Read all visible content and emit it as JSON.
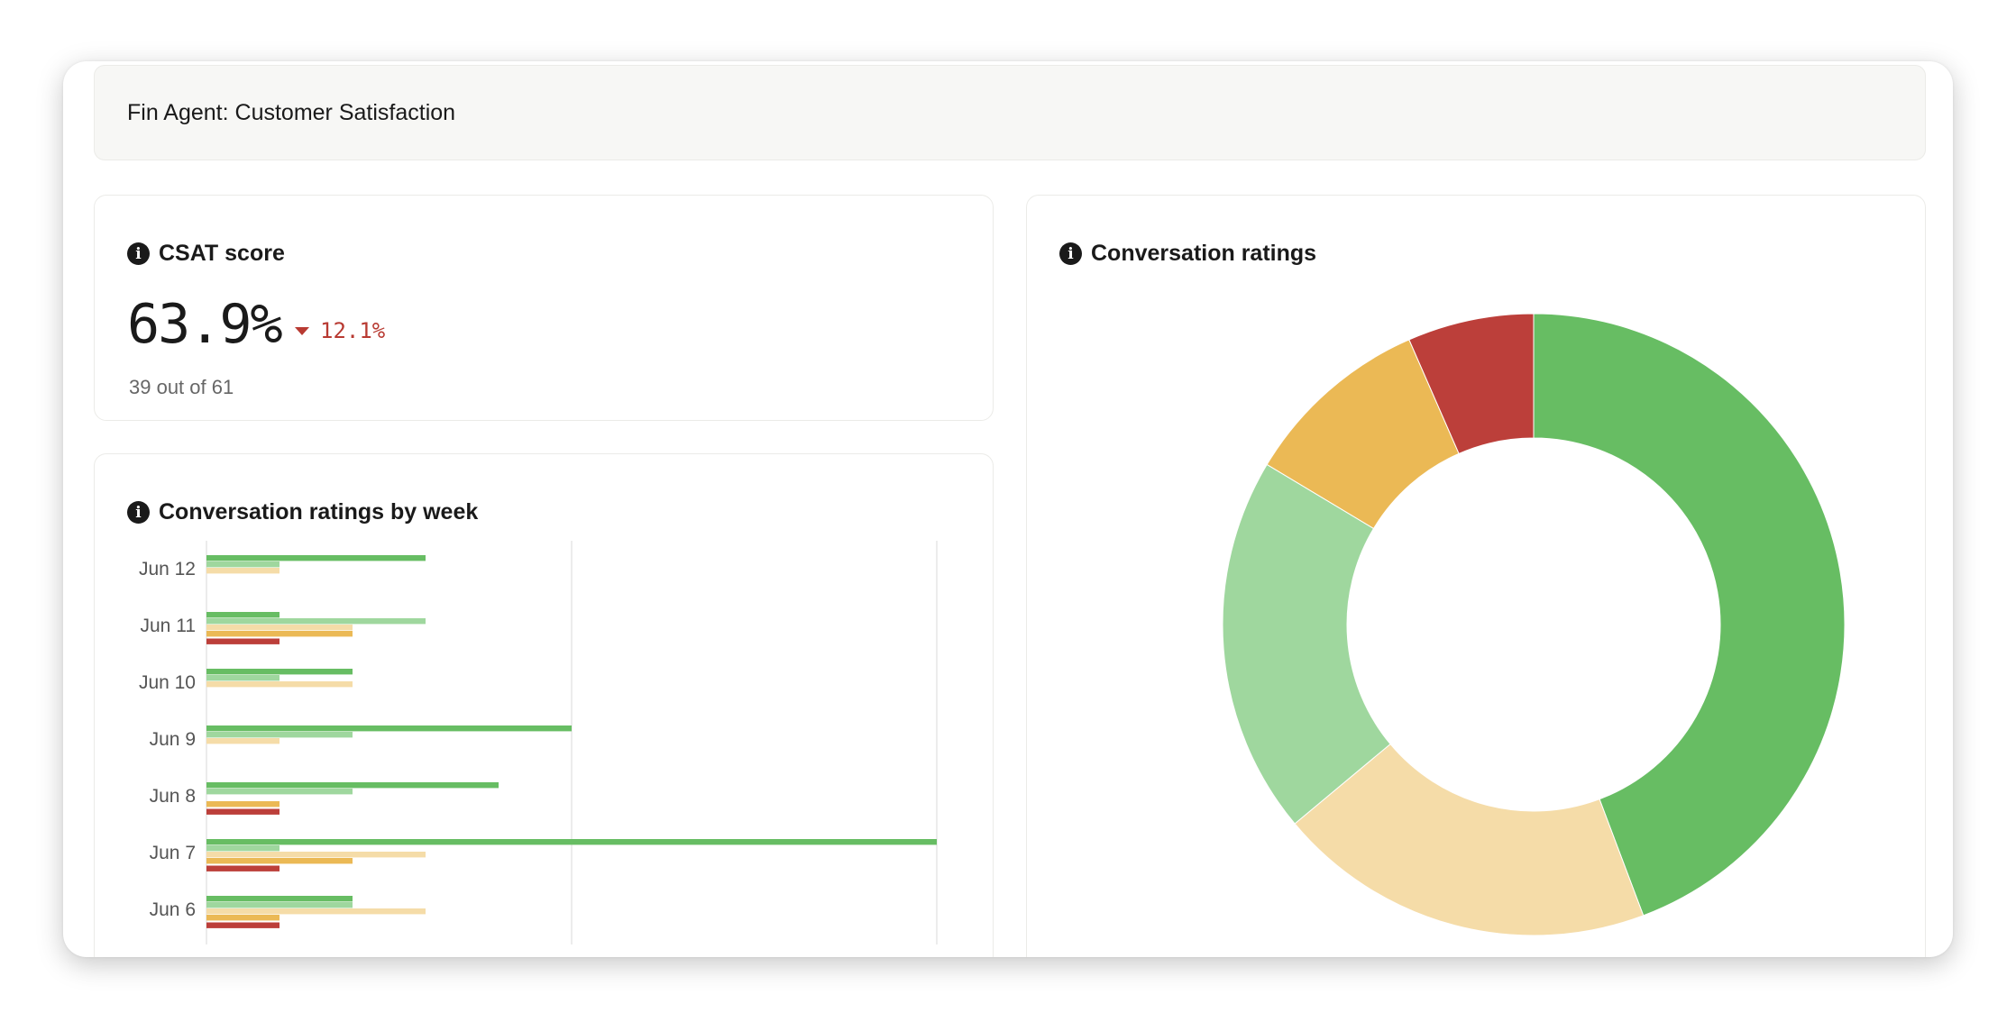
{
  "header": {
    "title": "Fin Agent: Customer Satisfaction"
  },
  "csat": {
    "title": "CSAT score",
    "value": "63.9%",
    "delta": "12.1%",
    "delta_direction": "down",
    "detail": "39 out of 61"
  },
  "weekly": {
    "title": "Conversation ratings by week"
  },
  "ratings": {
    "title": "Conversation ratings"
  },
  "colors": {
    "green": "#67bd63",
    "light_green": "#9fd79e",
    "pale_yellow": "#f5dca8",
    "orange": "#ebb955",
    "red": "#bc3f3a",
    "negative": "#b83a32"
  },
  "chart_data": [
    {
      "type": "bar",
      "orientation": "horizontal",
      "title": "Conversation ratings by week",
      "categories": [
        "Jun 12",
        "Jun 11",
        "Jun 10",
        "Jun 9",
        "Jun 8",
        "Jun 7",
        "Jun 6"
      ],
      "xlim": [
        0,
        10
      ],
      "grid": true,
      "series": [
        {
          "color": "#67bd63",
          "values": [
            3,
            1,
            2,
            5,
            4,
            10,
            2
          ]
        },
        {
          "color": "#9fd79e",
          "values": [
            1,
            3,
            1,
            2,
            2,
            1,
            2
          ]
        },
        {
          "color": "#f5dca8",
          "values": [
            1,
            2,
            2,
            1,
            0,
            3,
            3
          ]
        },
        {
          "color": "#ebb955",
          "values": [
            0,
            2,
            0,
            0,
            1,
            2,
            1
          ]
        },
        {
          "color": "#bc3f3a",
          "values": [
            0,
            1,
            0,
            0,
            1,
            1,
            1
          ]
        }
      ]
    },
    {
      "type": "pie",
      "variant": "donut",
      "title": "Conversation ratings",
      "slices": [
        {
          "value": 27,
          "color": "#67bd63"
        },
        {
          "value": 12,
          "color": "#f5dca8"
        },
        {
          "value": 12,
          "color": "#9fd79e"
        },
        {
          "value": 6,
          "color": "#ebb955"
        },
        {
          "value": 4,
          "color": "#bc3f3a"
        }
      ]
    }
  ]
}
